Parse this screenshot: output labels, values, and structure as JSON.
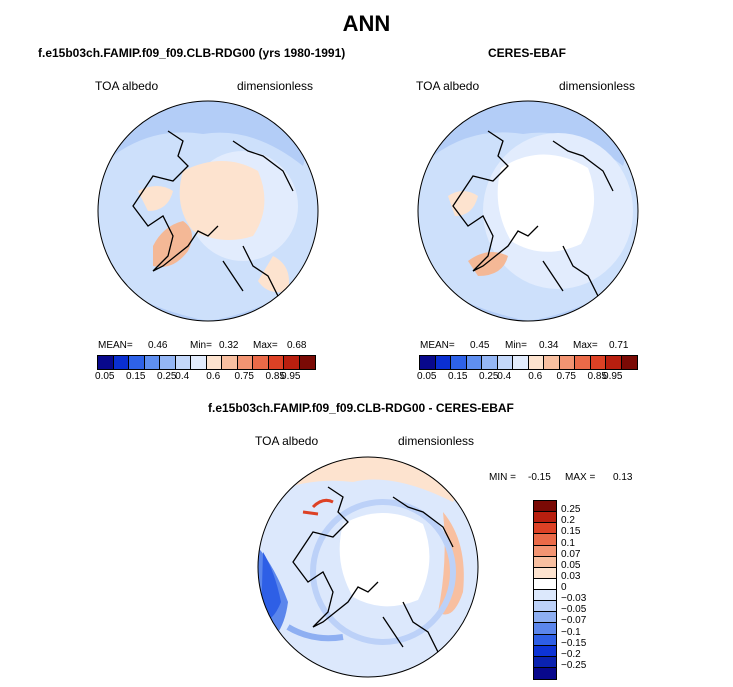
{
  "figure": {
    "main_title": "ANN",
    "panel1": {
      "title": "f.e15b03ch.FAMIP.f09_f09.CLB-RDG00 (yrs 1980-1991)",
      "variable": "TOA albedo",
      "units": "dimensionless",
      "stats": {
        "mean_label": "MEAN=",
        "mean": "0.46",
        "min_label": "Min=",
        "min": "0.32",
        "max_label": "Max=",
        "max": "0.68"
      }
    },
    "panel2": {
      "title": "CERES-EBAF",
      "variable": "TOA albedo",
      "units": "dimensionless",
      "stats": {
        "mean_label": "MEAN=",
        "mean": "0.45",
        "min_label": "Min=",
        "min": "0.34",
        "max_label": "Max=",
        "max": "0.71"
      }
    },
    "panel3": {
      "title": "f.e15b03ch.FAMIP.f09_f09.CLB-RDG00 - CERES-EBAF",
      "variable": "TOA albedo",
      "units": "dimensionless",
      "stats": {
        "min_label": "MIN =",
        "min": "-0.15",
        "max_label": "MAX =",
        "max": "0.13"
      }
    },
    "horizontal_colorbar": {
      "colors": [
        "#08088c",
        "#0a2fd1",
        "#2e62e8",
        "#5f8ff0",
        "#94b6f5",
        "#c4d8fa",
        "#e2ecfd",
        "#fde3cf",
        "#f8bfa0",
        "#f29472",
        "#ea6a48",
        "#dd4125",
        "#b81f0f",
        "#7a0a05"
      ],
      "labels": [
        "0.05",
        "0.15",
        "0.25",
        "0.4",
        "0.6",
        "0.75",
        "0.85",
        "0.95"
      ]
    },
    "vertical_colorbar": {
      "colors": [
        "#7a0a05",
        "#b81f0f",
        "#dd4125",
        "#ea6a48",
        "#f29472",
        "#f8bfa0",
        "#fde3cf",
        "#ffffff",
        "#dce8fc",
        "#bcd1f8",
        "#8eaff2",
        "#5b86ec",
        "#2e5fe6",
        "#0d34d6",
        "#0a22b0",
        "#08088c"
      ],
      "labels": [
        "0.25",
        "0.2",
        "0.15",
        "0.1",
        "0.07",
        "0.05",
        "0.03",
        "0",
        "−0.03",
        "−0.05",
        "−0.07",
        "−0.1",
        "−0.15",
        "−0.2",
        "−0.25"
      ]
    },
    "map_colors": {
      "ocean_base": "#cde0fb",
      "ocean_light": "#e2ecfd",
      "ocean_mid": "#b3cdf7",
      "arctic_warm": "#fde3cf",
      "greenland": "#f4b896",
      "zero": "#ffffff",
      "neg_strong": "#2e62e8",
      "pos_strong": "#ea6a48"
    }
  }
}
